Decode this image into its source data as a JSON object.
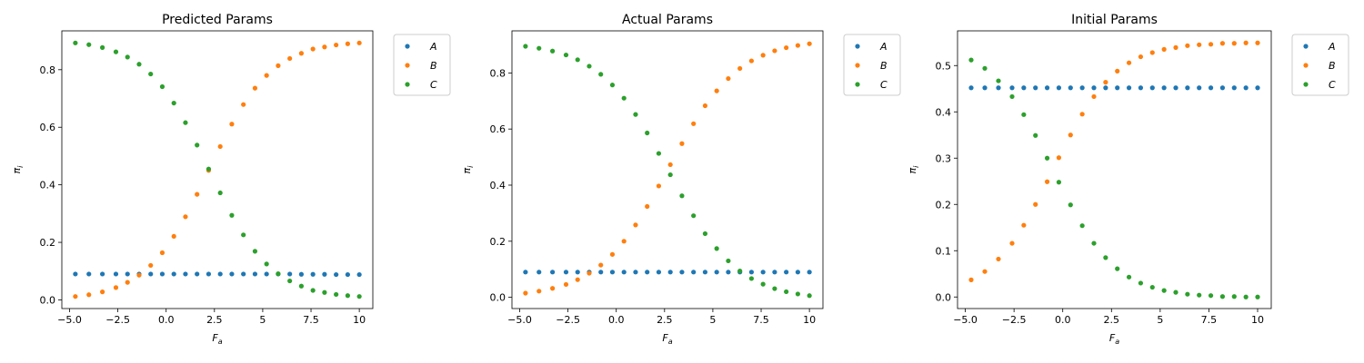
{
  "chart_data": [
    {
      "type": "scatter",
      "title": "Predicted Params",
      "xlabel": {
        "base": "F",
        "sub": "a"
      },
      "ylabel": {
        "base": "π",
        "sub": "i"
      },
      "x": [
        -4.7,
        -4,
        -3.3,
        -2.6,
        -2,
        -1.4,
        -0.8,
        -0.2,
        0.4,
        1,
        1.6,
        2.2,
        2.8,
        3.4,
        4,
        4.6,
        5.2,
        5.8,
        6.4,
        7,
        7.6,
        8.2,
        8.8,
        9.4,
        10
      ],
      "series": [
        {
          "name": "A",
          "color": "#1f77b4",
          "values": [
            0.09,
            0.09,
            0.09,
            0.09,
            0.09,
            0.09,
            0.09,
            0.09,
            0.09,
            0.09,
            0.09,
            0.09,
            0.09,
            0.09,
            0.09,
            0.09,
            0.09,
            0.09,
            0.09,
            0.089,
            0.089,
            0.089,
            0.088,
            0.088,
            0.088
          ]
        },
        {
          "name": "B",
          "color": "#ff7f0e",
          "values": [
            0.012,
            0.018,
            0.028,
            0.043,
            0.061,
            0.086,
            0.12,
            0.164,
            0.221,
            0.289,
            0.367,
            0.45,
            0.533,
            0.611,
            0.679,
            0.736,
            0.78,
            0.814,
            0.839,
            0.857,
            0.872,
            0.879,
            0.886,
            0.89,
            0.893
          ]
        },
        {
          "name": "C",
          "color": "#2ca02c",
          "values": [
            0.893,
            0.887,
            0.877,
            0.862,
            0.844,
            0.819,
            0.785,
            0.741,
            0.684,
            0.616,
            0.538,
            0.455,
            0.372,
            0.294,
            0.226,
            0.169,
            0.125,
            0.091,
            0.066,
            0.048,
            0.033,
            0.026,
            0.019,
            0.015,
            0.012
          ]
        }
      ],
      "xlim": [
        -5.4,
        10.7
      ],
      "xticks": [
        {
          "value": -5,
          "label": "−5.0"
        },
        {
          "value": -2.5,
          "label": "−2.5"
        },
        {
          "value": 0,
          "label": "0.0"
        },
        2.5,
        5,
        7.5,
        10
      ],
      "ylim": [
        -0.03,
        0.935
      ],
      "yticks": [
        {
          "value": 0,
          "label": "0.0"
        },
        0.2,
        0.4,
        0.6,
        0.8
      ],
      "legend": "outside-upper-right"
    },
    {
      "type": "scatter",
      "title": "Actual Params",
      "xlabel": {
        "base": "F",
        "sub": "a"
      },
      "ylabel": {
        "base": "π",
        "sub": "i"
      },
      "x": [
        -4.7,
        -4,
        -3.3,
        -2.6,
        -2,
        -1.4,
        -0.8,
        -0.2,
        0.4,
        1,
        1.6,
        2.2,
        2.8,
        3.4,
        4,
        4.6,
        5.2,
        5.8,
        6.4,
        7,
        7.6,
        8.2,
        8.8,
        9.4,
        10
      ],
      "series": [
        {
          "name": "A",
          "color": "#1f77b4",
          "values": [
            0.09,
            0.09,
            0.09,
            0.09,
            0.09,
            0.09,
            0.09,
            0.09,
            0.09,
            0.09,
            0.09,
            0.09,
            0.09,
            0.09,
            0.09,
            0.09,
            0.09,
            0.09,
            0.09,
            0.09,
            0.09,
            0.09,
            0.09,
            0.09,
            0.09
          ]
        },
        {
          "name": "B",
          "color": "#ff7f0e",
          "values": [
            0.015,
            0.022,
            0.032,
            0.046,
            0.063,
            0.086,
            0.115,
            0.153,
            0.2,
            0.258,
            0.324,
            0.397,
            0.473,
            0.548,
            0.619,
            0.683,
            0.736,
            0.78,
            0.816,
            0.843,
            0.863,
            0.879,
            0.89,
            0.898,
            0.904
          ]
        },
        {
          "name": "C",
          "color": "#2ca02c",
          "values": [
            0.895,
            0.888,
            0.878,
            0.864,
            0.847,
            0.824,
            0.795,
            0.757,
            0.71,
            0.652,
            0.586,
            0.513,
            0.437,
            0.362,
            0.291,
            0.227,
            0.174,
            0.13,
            0.094,
            0.067,
            0.047,
            0.031,
            0.02,
            0.012,
            0.006
          ]
        }
      ],
      "xlim": [
        -5.4,
        10.7
      ],
      "xticks": [
        {
          "value": -5,
          "label": "−5.0"
        },
        {
          "value": -2.5,
          "label": "−2.5"
        },
        {
          "value": 0,
          "label": "0.0"
        },
        2.5,
        5,
        7.5,
        10
      ],
      "ylim": [
        -0.04,
        0.95
      ],
      "yticks": [
        {
          "value": 0,
          "label": "0.0"
        },
        0.2,
        0.4,
        0.6,
        0.8
      ],
      "legend": "outside-upper-right"
    },
    {
      "type": "scatter",
      "title": "Initial Params",
      "xlabel": {
        "base": "F",
        "sub": "a"
      },
      "ylabel": {
        "base": "π",
        "sub": "i"
      },
      "x": [
        -4.7,
        -4,
        -3.3,
        -2.6,
        -2,
        -1.4,
        -0.8,
        -0.2,
        0.4,
        1,
        1.6,
        2.2,
        2.8,
        3.4,
        4,
        4.6,
        5.2,
        5.8,
        6.4,
        7,
        7.6,
        8.2,
        8.8,
        9.4,
        10
      ],
      "series": [
        {
          "name": "A",
          "color": "#1f77b4",
          "values": [
            0.452,
            0.452,
            0.452,
            0.452,
            0.452,
            0.452,
            0.452,
            0.452,
            0.452,
            0.452,
            0.452,
            0.452,
            0.452,
            0.452,
            0.452,
            0.452,
            0.452,
            0.452,
            0.452,
            0.452,
            0.452,
            0.452,
            0.452,
            0.452,
            0.452
          ]
        },
        {
          "name": "B",
          "color": "#ff7f0e",
          "values": [
            0.037,
            0.055,
            0.082,
            0.116,
            0.155,
            0.2,
            0.249,
            0.301,
            0.35,
            0.395,
            0.433,
            0.464,
            0.488,
            0.506,
            0.519,
            0.528,
            0.535,
            0.539,
            0.543,
            0.545,
            0.546,
            0.548,
            0.548,
            0.549,
            0.549
          ]
        },
        {
          "name": "C",
          "color": "#2ca02c",
          "values": [
            0.512,
            0.494,
            0.467,
            0.433,
            0.394,
            0.349,
            0.3,
            0.248,
            0.199,
            0.154,
            0.116,
            0.085,
            0.061,
            0.043,
            0.03,
            0.021,
            0.014,
            0.01,
            0.006,
            0.004,
            0.003,
            0.001,
            0.001,
            0,
            0
          ]
        }
      ],
      "xlim": [
        -5.4,
        10.7
      ],
      "xticks": [
        {
          "value": -5,
          "label": "−5.0"
        },
        {
          "value": -2.5,
          "label": "−2.5"
        },
        {
          "value": 0,
          "label": "0.0"
        },
        2.5,
        5,
        7.5,
        10
      ],
      "ylim": [
        -0.025,
        0.575
      ],
      "yticks": [
        {
          "value": 0,
          "label": "0.0"
        },
        0.1,
        0.2,
        0.3,
        0.4,
        0.5
      ],
      "legend": "outside-upper-right"
    }
  ]
}
